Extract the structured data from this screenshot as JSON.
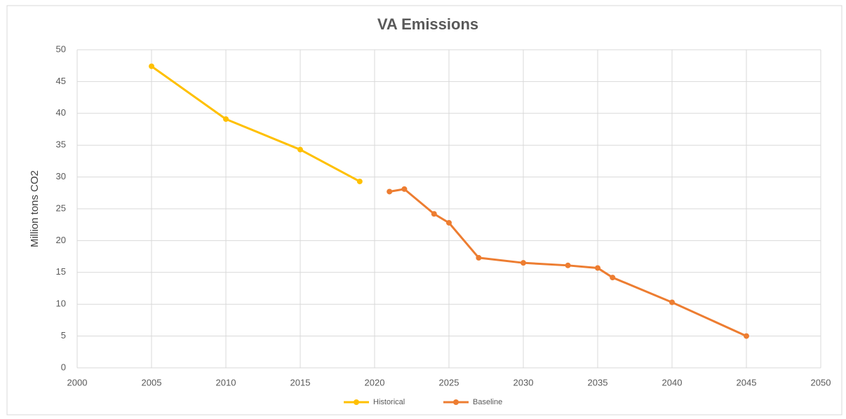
{
  "chart_data": {
    "type": "line",
    "title": "VA Emissions",
    "y_label": "Million tons CO2",
    "series": [
      {
        "name": "Historical",
        "color": "#ffc000",
        "x": [
          2005,
          2010,
          2015,
          2019
        ],
        "values": [
          47.4,
          39.1,
          34.3,
          29.3
        ]
      },
      {
        "name": "Baseline",
        "color": "#ed7d31",
        "x": [
          2021,
          2022,
          2024,
          2025,
          2027,
          2030,
          2033,
          2035,
          2036,
          2040,
          2045
        ],
        "values": [
          27.7,
          28.1,
          24.2,
          22.8,
          17.3,
          16.5,
          16.1,
          15.7,
          14.2,
          10.3,
          5.0
        ]
      }
    ],
    "xlim": [
      2000,
      2050
    ],
    "xticks": [
      2000,
      2005,
      2010,
      2015,
      2020,
      2025,
      2030,
      2035,
      2040,
      2045,
      2050
    ],
    "ylim": [
      0,
      50
    ],
    "yticks": [
      0,
      5,
      10,
      15,
      20,
      25,
      30,
      35,
      40,
      45,
      50
    ],
    "grid": true,
    "legend": "bottom"
  }
}
